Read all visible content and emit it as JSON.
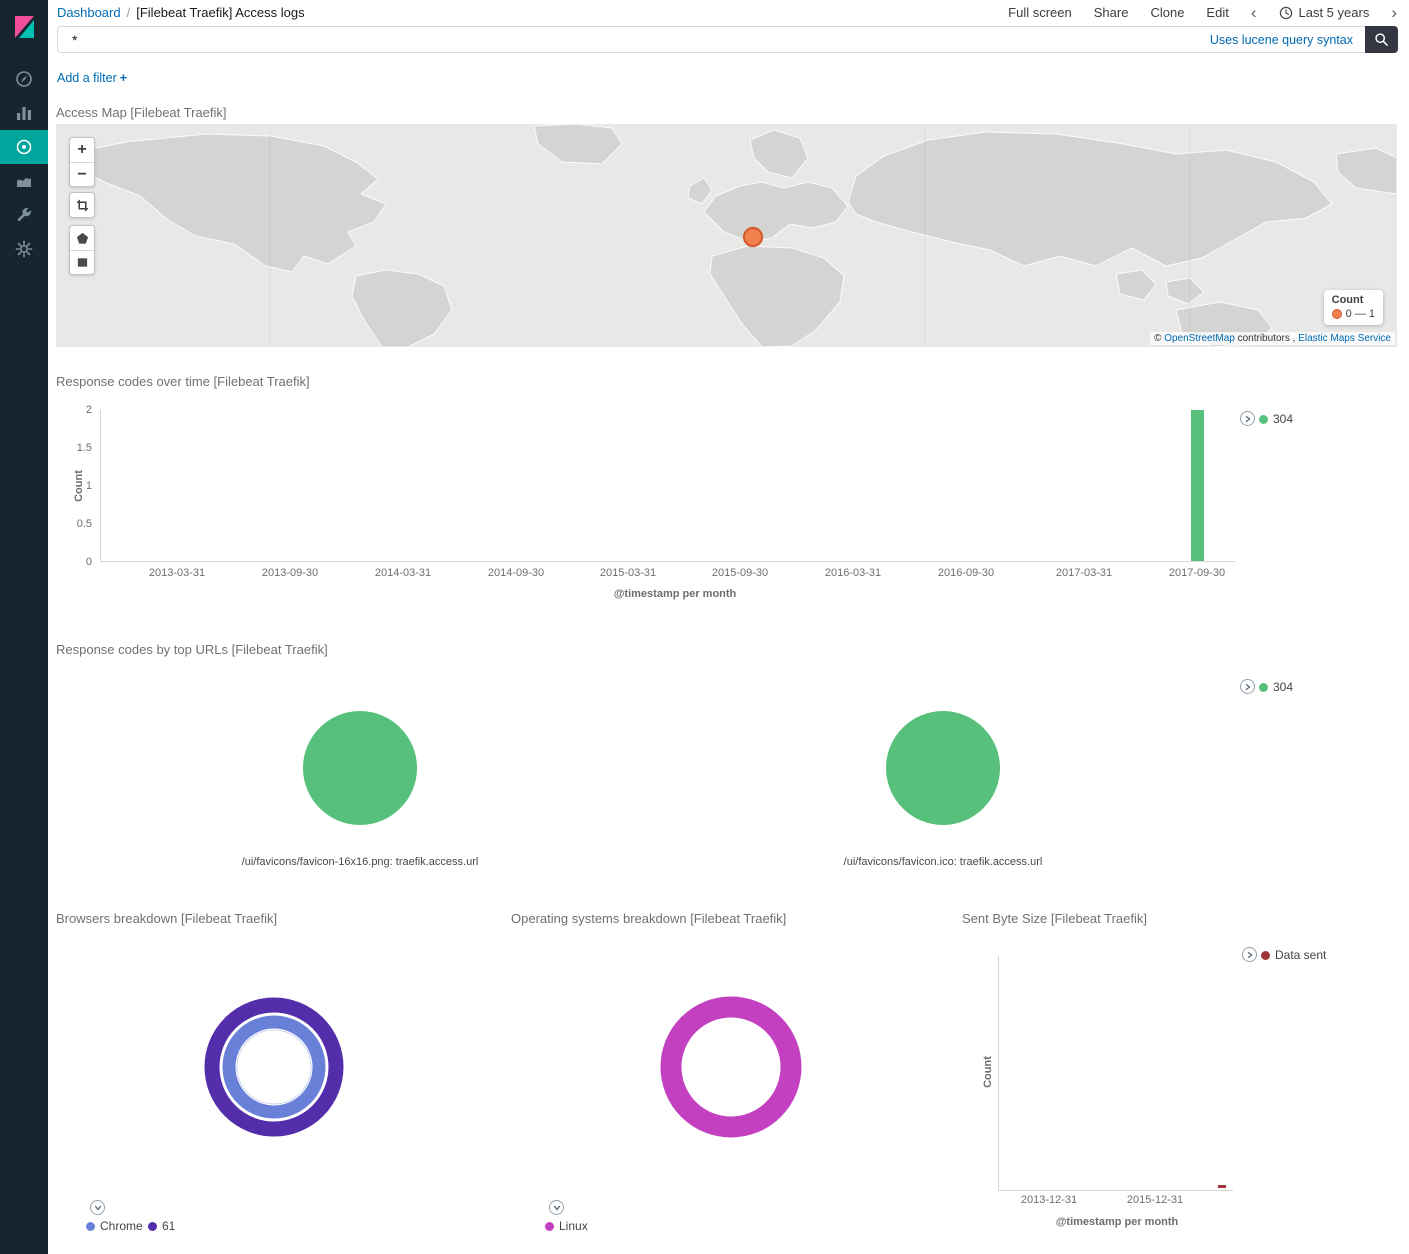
{
  "colors": {
    "green": "#57C17B",
    "purple": "#542DAB",
    "blue": "#6980D8",
    "magenta": "#C341C1",
    "dark_red": "#A0343A",
    "orange": "#F2804E",
    "teal_accent": "#00A69B",
    "link_blue": "#006BB4"
  },
  "icons": {
    "search-icon": "magnifier",
    "clock-icon": "clock",
    "legend-toggle-icon": "chevron-in-circle"
  },
  "sidebar": {
    "items": [
      {
        "name": "discover"
      },
      {
        "name": "visualize"
      },
      {
        "name": "dashboard",
        "active": true
      },
      {
        "name": "timelion"
      },
      {
        "name": "dev-tools"
      },
      {
        "name": "management"
      }
    ]
  },
  "header": {
    "breadcrumb": {
      "root": "Dashboard",
      "separator": "/",
      "current": "[Filebeat Traefik] Access logs"
    },
    "actions": {
      "full_screen": "Full screen",
      "share": "Share",
      "clone": "Clone",
      "edit": "Edit"
    },
    "time_picker": {
      "prev": "‹",
      "label": "Last 5 years",
      "next": "›"
    }
  },
  "query_bar": {
    "value": "*",
    "syntax_hint": "Uses lucene query syntax"
  },
  "filter_bar": {
    "add_filter": "Add a filter",
    "plus": "+"
  },
  "map_panel": {
    "title": "Access Map [Filebeat Traefik]",
    "zoom_in": "+",
    "zoom_out": "−",
    "legend": {
      "title": "Count",
      "range": "0 — 1"
    },
    "attribution": {
      "copyright": "© ",
      "osm": "OpenStreetMap",
      "middle": " contributors , ",
      "elastic": "Elastic Maps Service"
    }
  },
  "response_time_panel": {
    "title": "Response codes over time [Filebeat Traefik]",
    "legend": [
      {
        "label": "304",
        "color": "#57C17B"
      }
    ],
    "ylabel": "Count",
    "xlabel": "@timestamp per month",
    "y_ticks": [
      "2",
      "1.5",
      "1",
      "0.5",
      "0"
    ],
    "x_ticks": [
      "2013-03-31",
      "2013-09-30",
      "2014-03-31",
      "2014-09-30",
      "2015-03-31",
      "2015-09-30",
      "2016-03-31",
      "2016-09-30",
      "2017-03-31",
      "2017-09-30"
    ],
    "chart_data": {
      "type": "bar",
      "xlabel": "@timestamp per month",
      "ylabel": "Count",
      "ylim": [
        0,
        2
      ],
      "series": [
        {
          "name": "304",
          "color": "#57C17B",
          "points": [
            {
              "x": "2017-09-30",
              "y": 2
            }
          ]
        }
      ]
    }
  },
  "top_urls_panel": {
    "title": "Response codes by top URLs [Filebeat Traefik]",
    "legend": [
      {
        "label": "304",
        "color": "#57C17B"
      }
    ],
    "chart_data": {
      "type": "pie",
      "pies": [
        {
          "label": "/ui/favicons/favicon-16x16.png: traefik.access.url",
          "slices": [
            {
              "name": "304",
              "value": 100,
              "color": "#57C17B"
            }
          ]
        },
        {
          "label": "/ui/favicons/favicon.ico: traefik.access.url",
          "slices": [
            {
              "name": "304",
              "value": 100,
              "color": "#57C17B"
            }
          ]
        }
      ]
    }
  },
  "browsers_panel": {
    "title": "Browsers breakdown [Filebeat Traefik]",
    "legend": [
      {
        "label": "Chrome",
        "color": "#6980D8"
      },
      {
        "label": "61",
        "color": "#542DAB"
      }
    ],
    "chart_data": {
      "type": "pie",
      "rings": [
        {
          "name": "Chrome",
          "value": 100,
          "color": "#6980D8"
        },
        {
          "name": "61",
          "value": 100,
          "color": "#542DAB"
        }
      ]
    }
  },
  "os_panel": {
    "title": "Operating systems breakdown [Filebeat Traefik]",
    "legend": [
      {
        "label": "Linux",
        "color": "#C341C1"
      }
    ],
    "chart_data": {
      "type": "pie",
      "slices": [
        {
          "name": "Linux",
          "value": 100,
          "color": "#C341C1"
        }
      ]
    }
  },
  "bytes_panel": {
    "title": "Sent Byte Size [Filebeat Traefik]",
    "legend": [
      {
        "label": "Data sent",
        "color": "#A0343A"
      }
    ],
    "ylabel": "Count",
    "xlabel": "@timestamp per month",
    "x_ticks": [
      "2013-12-31",
      "2015-12-31"
    ],
    "chart_data": {
      "type": "line",
      "xlabel": "@timestamp per month",
      "ylabel": "Count",
      "series": [
        {
          "name": "Data sent",
          "color": "#A0343A",
          "points": [
            {
              "x": "2017-09-30",
              "y": 0
            }
          ]
        }
      ]
    }
  }
}
